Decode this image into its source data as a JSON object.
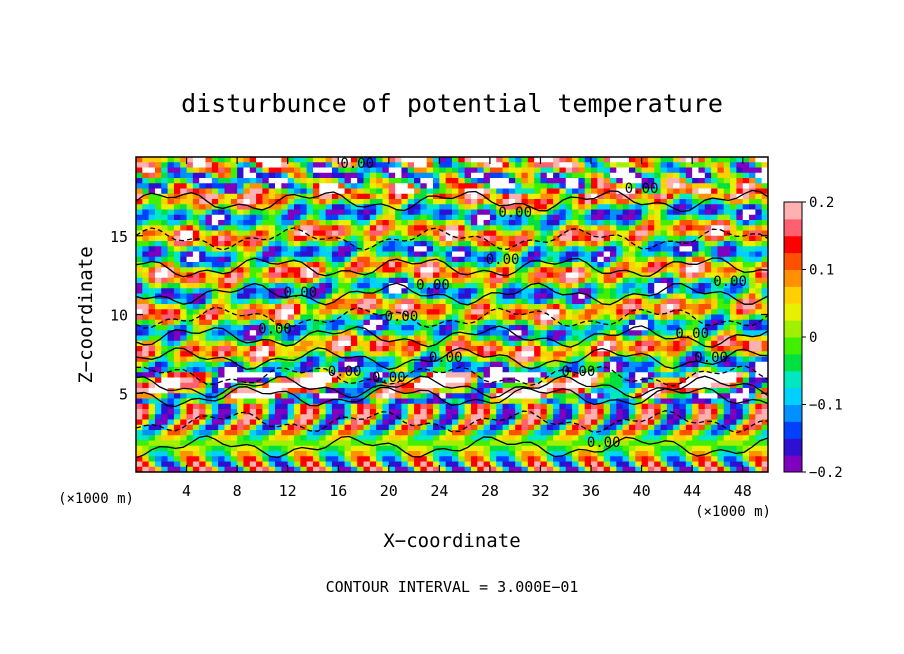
{
  "chart_data": {
    "type": "heatmap",
    "title": "disturbunce of potential temperature",
    "xlabel": "X−coordinate",
    "ylabel": "Z−coordinate",
    "x_unit": "(×1000 m)",
    "y_unit": "(×1000 m)",
    "xlim": [
      0,
      50
    ],
    "ylim": [
      0,
      20
    ],
    "x_ticks": [
      4,
      8,
      12,
      16,
      20,
      24,
      28,
      32,
      36,
      40,
      44,
      48
    ],
    "y_ticks": [
      5,
      10,
      15
    ],
    "colorbar": {
      "min": -0.2,
      "max": 0.2,
      "ticks": [
        0.2,
        0.1,
        0,
        -0.1,
        -0.2
      ],
      "tick_labels": [
        "0.2",
        "0.1",
        "0",
        "−0.1",
        "−0.2"
      ],
      "colors": [
        "#8000c0",
        "#3010d0",
        "#0040ff",
        "#0090ff",
        "#00d0ff",
        "#00e8c0",
        "#00e040",
        "#40f000",
        "#a0f000",
        "#e8f000",
        "#ffd000",
        "#ff9000",
        "#ff5000",
        "#ff0000",
        "#ff6070",
        "#ffb0b0"
      ]
    },
    "contour_interval_text": "CONTOUR INTERVAL = 3.000E−01",
    "contour_labels": [
      {
        "text": "0.00",
        "x": 17.5,
        "z": 19.3
      },
      {
        "text": "0.00",
        "x": 30.0,
        "z": 16.2
      },
      {
        "text": "0.00",
        "x": 29.0,
        "z": 13.2
      },
      {
        "text": "0.00",
        "x": 23.5,
        "z": 11.6
      },
      {
        "text": "0.00",
        "x": 13.0,
        "z": 11.1
      },
      {
        "text": "0.00",
        "x": 21.0,
        "z": 9.6
      },
      {
        "text": "0.00",
        "x": 24.5,
        "z": 7.0
      },
      {
        "text": "0.00",
        "x": 16.5,
        "z": 6.1
      },
      {
        "text": "0.00",
        "x": 20.0,
        "z": 5.7
      },
      {
        "text": "0.00",
        "x": 35.0,
        "z": 6.1
      },
      {
        "text": "0.00",
        "x": 44.0,
        "z": 8.5
      },
      {
        "text": "0.00",
        "x": 45.5,
        "z": 7.0
      },
      {
        "text": "0.00",
        "x": 47.0,
        "z": 11.8
      },
      {
        "text": "0.00",
        "x": 40.0,
        "z": 17.7
      },
      {
        "text": "0.00",
        "x": 37.0,
        "z": 1.6
      },
      {
        "text": "0.00",
        "x": 11.0,
        "z": 8.8
      }
    ]
  }
}
